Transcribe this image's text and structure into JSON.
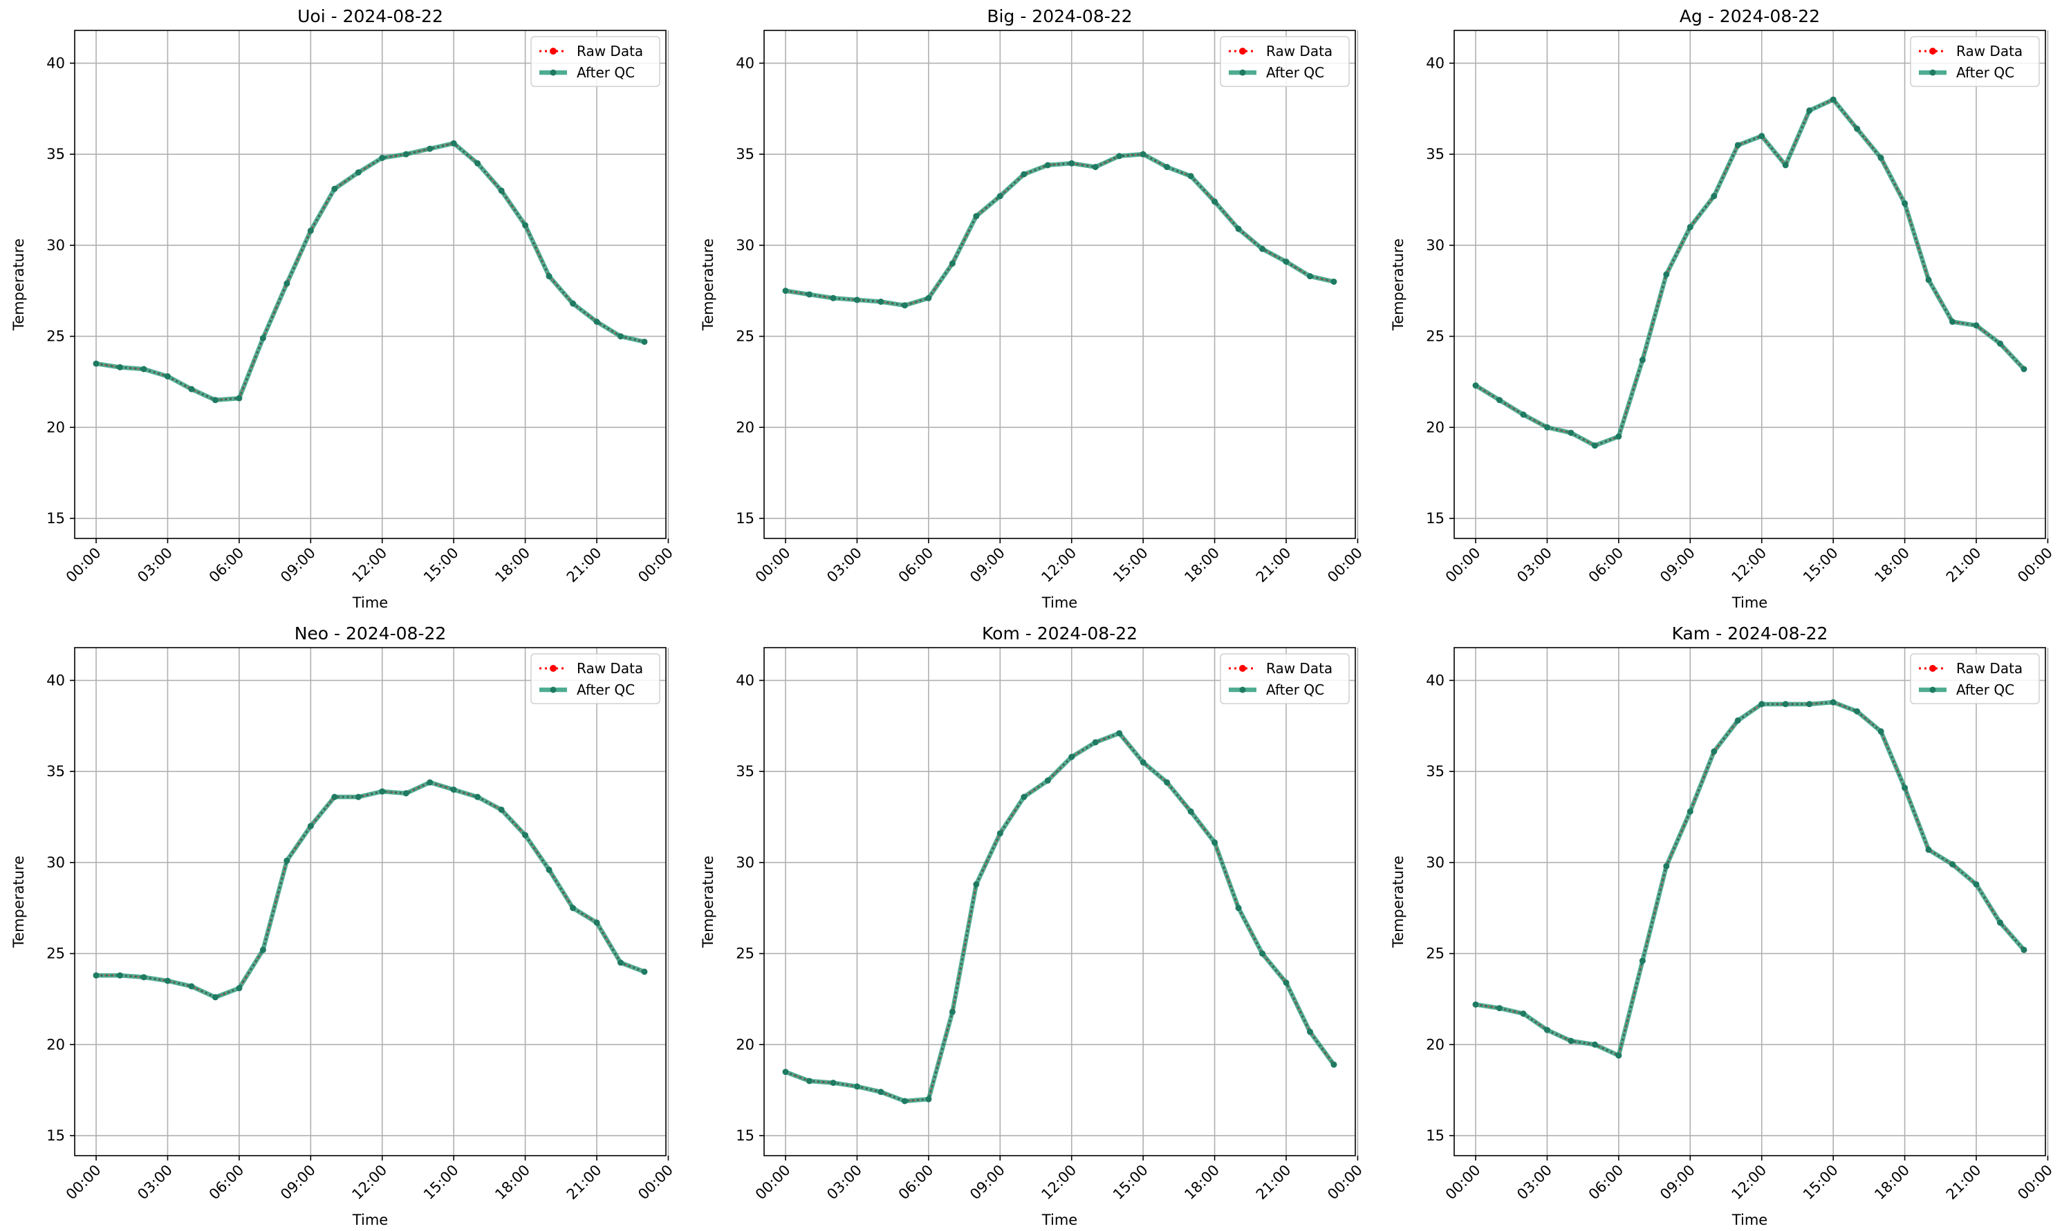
{
  "figure": {
    "background": "#ffffff"
  },
  "styles": {
    "raw_color": "#ff0000",
    "qc_color": "#2e9e7e",
    "grid_color": "#b0b0b0"
  },
  "chart_data": [
    {
      "type": "line",
      "title": "Uoi - 2024-08-22",
      "xlabel": "Time",
      "ylabel": "Temperature",
      "xlim": [
        -0.9,
        23.9
      ],
      "ylim": [
        13.9,
        41.8
      ],
      "xticks": [
        "00:00",
        "03:00",
        "06:00",
        "09:00",
        "12:00",
        "15:00",
        "18:00",
        "21:00",
        "00:00"
      ],
      "yticks": [
        15,
        20,
        25,
        30,
        35,
        40
      ],
      "grid": true,
      "legend_position": "top-right",
      "x": [
        "00:00",
        "01:00",
        "02:00",
        "03:00",
        "04:00",
        "05:00",
        "06:00",
        "07:00",
        "08:00",
        "09:00",
        "10:00",
        "11:00",
        "12:00",
        "13:00",
        "14:00",
        "15:00",
        "16:00",
        "17:00",
        "18:00",
        "19:00",
        "20:00",
        "21:00",
        "22:00",
        "23:00"
      ],
      "series": [
        {
          "name": "Raw Data",
          "style": "dotted",
          "values": [
            23.5,
            23.3,
            23.2,
            22.8,
            22.1,
            21.5,
            21.6,
            24.9,
            27.9,
            30.8,
            33.1,
            34.0,
            34.8,
            35.0,
            35.3,
            35.6,
            34.5,
            33.0,
            31.1,
            28.3,
            26.8,
            25.8,
            25.0,
            24.7
          ]
        },
        {
          "name": "After QC",
          "style": "solid",
          "values": [
            23.5,
            23.3,
            23.2,
            22.8,
            22.1,
            21.5,
            21.6,
            24.9,
            27.9,
            30.8,
            33.1,
            34.0,
            34.8,
            35.0,
            35.3,
            35.6,
            34.5,
            33.0,
            31.1,
            28.3,
            26.8,
            25.8,
            25.0,
            24.7
          ]
        }
      ]
    },
    {
      "type": "line",
      "title": "Big - 2024-08-22",
      "xlabel": "Time",
      "ylabel": "Temperature",
      "xlim": [
        -0.9,
        23.9
      ],
      "ylim": [
        13.9,
        41.8
      ],
      "xticks": [
        "00:00",
        "03:00",
        "06:00",
        "09:00",
        "12:00",
        "15:00",
        "18:00",
        "21:00",
        "00:00"
      ],
      "yticks": [
        15,
        20,
        25,
        30,
        35,
        40
      ],
      "grid": true,
      "legend_position": "top-right",
      "x": [
        "00:00",
        "01:00",
        "02:00",
        "03:00",
        "04:00",
        "05:00",
        "06:00",
        "07:00",
        "08:00",
        "09:00",
        "10:00",
        "11:00",
        "12:00",
        "13:00",
        "14:00",
        "15:00",
        "16:00",
        "17:00",
        "18:00",
        "19:00",
        "20:00",
        "21:00",
        "22:00",
        "23:00"
      ],
      "series": [
        {
          "name": "Raw Data",
          "style": "dotted",
          "values": [
            27.5,
            27.3,
            27.1,
            27.0,
            26.9,
            26.7,
            27.1,
            29.0,
            31.6,
            32.7,
            33.9,
            34.4,
            34.5,
            34.3,
            34.9,
            35.0,
            34.3,
            33.8,
            32.4,
            30.9,
            29.8,
            29.1,
            28.3,
            28.0
          ]
        },
        {
          "name": "After QC",
          "style": "solid",
          "values": [
            27.5,
            27.3,
            27.1,
            27.0,
            26.9,
            26.7,
            27.1,
            29.0,
            31.6,
            32.7,
            33.9,
            34.4,
            34.5,
            34.3,
            34.9,
            35.0,
            34.3,
            33.8,
            32.4,
            30.9,
            29.8,
            29.1,
            28.3,
            28.0
          ]
        }
      ]
    },
    {
      "type": "line",
      "title": "Ag - 2024-08-22",
      "xlabel": "Time",
      "ylabel": "Temperature",
      "xlim": [
        -0.9,
        23.9
      ],
      "ylim": [
        13.9,
        41.8
      ],
      "xticks": [
        "00:00",
        "03:00",
        "06:00",
        "09:00",
        "12:00",
        "15:00",
        "18:00",
        "21:00",
        "00:00"
      ],
      "yticks": [
        15,
        20,
        25,
        30,
        35,
        40
      ],
      "grid": true,
      "legend_position": "top-right",
      "x": [
        "00:00",
        "01:00",
        "02:00",
        "03:00",
        "04:00",
        "05:00",
        "06:00",
        "07:00",
        "08:00",
        "09:00",
        "10:00",
        "11:00",
        "12:00",
        "13:00",
        "14:00",
        "15:00",
        "16:00",
        "17:00",
        "18:00",
        "19:00",
        "20:00",
        "21:00",
        "22:00",
        "23:00"
      ],
      "series": [
        {
          "name": "Raw Data",
          "style": "dotted",
          "values": [
            22.3,
            21.5,
            20.7,
            20.0,
            19.7,
            19.0,
            19.5,
            23.7,
            28.4,
            31.0,
            32.7,
            35.5,
            36.0,
            34.4,
            37.4,
            38.0,
            36.4,
            34.8,
            32.3,
            28.1,
            25.8,
            25.6,
            24.6,
            23.2
          ]
        },
        {
          "name": "After QC",
          "style": "solid",
          "values": [
            22.3,
            21.5,
            20.7,
            20.0,
            19.7,
            19.0,
            19.5,
            23.7,
            28.4,
            31.0,
            32.7,
            35.5,
            36.0,
            34.4,
            37.4,
            38.0,
            36.4,
            34.8,
            32.3,
            28.1,
            25.8,
            25.6,
            24.6,
            23.2
          ]
        }
      ]
    },
    {
      "type": "line",
      "title": "Neo - 2024-08-22",
      "xlabel": "Time",
      "ylabel": "Temperature",
      "xlim": [
        -0.9,
        23.9
      ],
      "ylim": [
        13.9,
        41.8
      ],
      "xticks": [
        "00:00",
        "03:00",
        "06:00",
        "09:00",
        "12:00",
        "15:00",
        "18:00",
        "21:00",
        "00:00"
      ],
      "yticks": [
        15,
        20,
        25,
        30,
        35,
        40
      ],
      "grid": true,
      "legend_position": "top-right",
      "x": [
        "00:00",
        "01:00",
        "02:00",
        "03:00",
        "04:00",
        "05:00",
        "06:00",
        "07:00",
        "08:00",
        "09:00",
        "10:00",
        "11:00",
        "12:00",
        "13:00",
        "14:00",
        "15:00",
        "16:00",
        "17:00",
        "18:00",
        "19:00",
        "20:00",
        "21:00",
        "22:00",
        "23:00"
      ],
      "series": [
        {
          "name": "Raw Data",
          "style": "dotted",
          "values": [
            23.8,
            23.8,
            23.7,
            23.5,
            23.2,
            22.6,
            23.1,
            25.2,
            30.1,
            32.0,
            33.6,
            33.6,
            33.9,
            33.8,
            34.4,
            34.0,
            33.6,
            32.9,
            31.5,
            29.6,
            27.5,
            26.7,
            24.5,
            24.0
          ]
        },
        {
          "name": "After QC",
          "style": "solid",
          "values": [
            23.8,
            23.8,
            23.7,
            23.5,
            23.2,
            22.6,
            23.1,
            25.2,
            30.1,
            32.0,
            33.6,
            33.6,
            33.9,
            33.8,
            34.4,
            34.0,
            33.6,
            32.9,
            31.5,
            29.6,
            27.5,
            26.7,
            24.5,
            24.0
          ]
        }
      ]
    },
    {
      "type": "line",
      "title": "Kom - 2024-08-22",
      "xlabel": "Time",
      "ylabel": "Temperature",
      "xlim": [
        -0.9,
        23.9
      ],
      "ylim": [
        13.9,
        41.8
      ],
      "xticks": [
        "00:00",
        "03:00",
        "06:00",
        "09:00",
        "12:00",
        "15:00",
        "18:00",
        "21:00",
        "00:00"
      ],
      "yticks": [
        15,
        20,
        25,
        30,
        35,
        40
      ],
      "grid": true,
      "legend_position": "top-right",
      "x": [
        "00:00",
        "01:00",
        "02:00",
        "03:00",
        "04:00",
        "05:00",
        "06:00",
        "07:00",
        "08:00",
        "09:00",
        "10:00",
        "11:00",
        "12:00",
        "13:00",
        "14:00",
        "15:00",
        "16:00",
        "17:00",
        "18:00",
        "19:00",
        "20:00",
        "21:00",
        "22:00",
        "23:00"
      ],
      "series": [
        {
          "name": "Raw Data",
          "style": "dotted",
          "values": [
            18.5,
            18.0,
            17.9,
            17.7,
            17.4,
            16.9,
            17.0,
            21.8,
            28.8,
            31.6,
            33.6,
            34.5,
            35.8,
            36.6,
            37.1,
            35.5,
            34.4,
            32.8,
            31.1,
            27.5,
            25.0,
            23.4,
            20.7,
            18.9
          ]
        },
        {
          "name": "After QC",
          "style": "solid",
          "values": [
            18.5,
            18.0,
            17.9,
            17.7,
            17.4,
            16.9,
            17.0,
            21.8,
            28.8,
            31.6,
            33.6,
            34.5,
            35.8,
            36.6,
            37.1,
            35.5,
            34.4,
            32.8,
            31.1,
            27.5,
            25.0,
            23.4,
            20.7,
            18.9
          ]
        }
      ]
    },
    {
      "type": "line",
      "title": "Kam - 2024-08-22",
      "xlabel": "Time",
      "ylabel": "Temperature",
      "xlim": [
        -0.9,
        23.9
      ],
      "ylim": [
        13.9,
        41.8
      ],
      "xticks": [
        "00:00",
        "03:00",
        "06:00",
        "09:00",
        "12:00",
        "15:00",
        "18:00",
        "21:00",
        "00:00"
      ],
      "yticks": [
        15,
        20,
        25,
        30,
        35,
        40
      ],
      "grid": true,
      "legend_position": "top-right",
      "x": [
        "00:00",
        "01:00",
        "02:00",
        "03:00",
        "04:00",
        "05:00",
        "06:00",
        "07:00",
        "08:00",
        "09:00",
        "10:00",
        "11:00",
        "12:00",
        "13:00",
        "14:00",
        "15:00",
        "16:00",
        "17:00",
        "18:00",
        "19:00",
        "20:00",
        "21:00",
        "22:00",
        "23:00"
      ],
      "series": [
        {
          "name": "Raw Data",
          "style": "dotted",
          "values": [
            22.2,
            22.0,
            21.7,
            20.8,
            20.2,
            20.0,
            19.4,
            24.6,
            29.8,
            32.8,
            36.1,
            37.8,
            38.7,
            38.7,
            38.7,
            38.8,
            38.3,
            37.2,
            34.1,
            30.7,
            29.9,
            28.8,
            26.7,
            25.2
          ]
        },
        {
          "name": "After QC",
          "style": "solid",
          "values": [
            22.2,
            22.0,
            21.7,
            20.8,
            20.2,
            20.0,
            19.4,
            24.6,
            29.8,
            32.8,
            36.1,
            37.8,
            38.7,
            38.7,
            38.7,
            38.8,
            38.3,
            37.2,
            34.1,
            30.7,
            29.9,
            28.8,
            26.7,
            25.2
          ]
        }
      ]
    }
  ]
}
